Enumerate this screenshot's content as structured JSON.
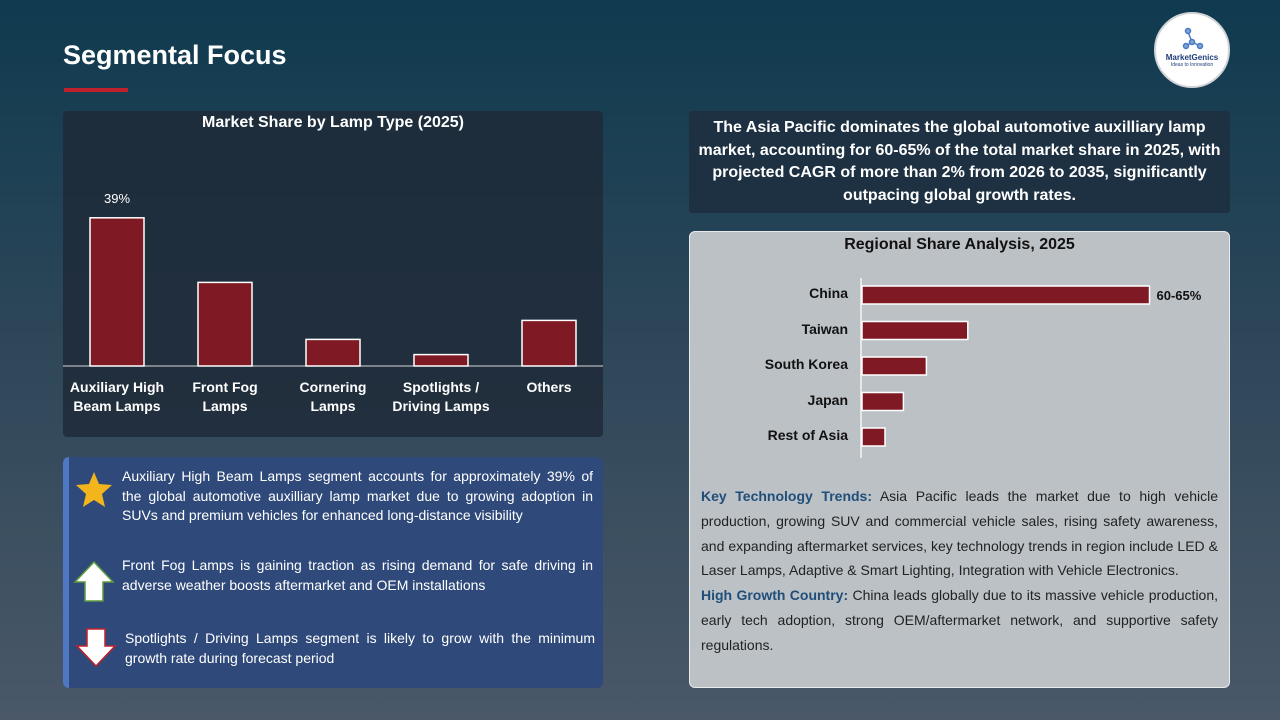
{
  "title": "Segmental Focus",
  "logo": {
    "name": "MarketGenics",
    "tagline": "Ideas to Innovation"
  },
  "summary": "The Asia Pacific dominates the global automotive auxilliary lamp market, accounting for 60-65% of the total market share in 2025, with projected CAGR of more than 2% from 2026 to 2035, significantly outpacing global growth rates.",
  "chart_data": [
    {
      "type": "bar",
      "title": "Market Share by Lamp Type (2025)",
      "categories": [
        "Auxiliary High Beam Lamps",
        "Front Fog Lamps",
        "Cornering Lamps",
        "Spotlights / Driving Lamps",
        "Others"
      ],
      "values": [
        39,
        22,
        7,
        3,
        12
      ],
      "value_labels": [
        "39%",
        null,
        null,
        null,
        null
      ],
      "color": "#7f1a24"
    },
    {
      "type": "hbar",
      "title": "Regional Share Analysis, 2025",
      "categories": [
        "China",
        "Taiwan",
        "South Korea",
        "Japan",
        "Rest of Asia"
      ],
      "values": [
        62.5,
        23,
        14,
        9,
        5
      ],
      "value_labels": [
        "60-65%",
        null,
        null,
        null,
        null
      ],
      "color": "#7f1a24"
    }
  ],
  "bullets": [
    "Auxiliary High Beam Lamps segment accounts for approximately 39% of the global automotive auxilliary lamp market due to growing adoption in SUVs and premium vehicles for enhanced long-distance visibility",
    "Front Fog Lamps is gaining traction as rising demand for safe driving in adverse weather boosts aftermarket and OEM installations",
    "Spotlights / Driving Lamps segment is likely to grow with the minimum growth rate during forecast period"
  ],
  "details": [
    {
      "label": "Key Technology Trends:",
      "text": "Asia Pacific leads the market due to high vehicle production, growing SUV and commercial vehicle sales, rising safety awareness, and expanding aftermarket services, key technology trends in region include LED & Laser Lamps, Adaptive & Smart Lighting, Integration with Vehicle Electronics."
    },
    {
      "label": "High Growth Country:",
      "text": "China leads globally due to its massive vehicle production, early tech adoption, strong OEM/aftermarket network, and supportive safety regulations."
    }
  ]
}
